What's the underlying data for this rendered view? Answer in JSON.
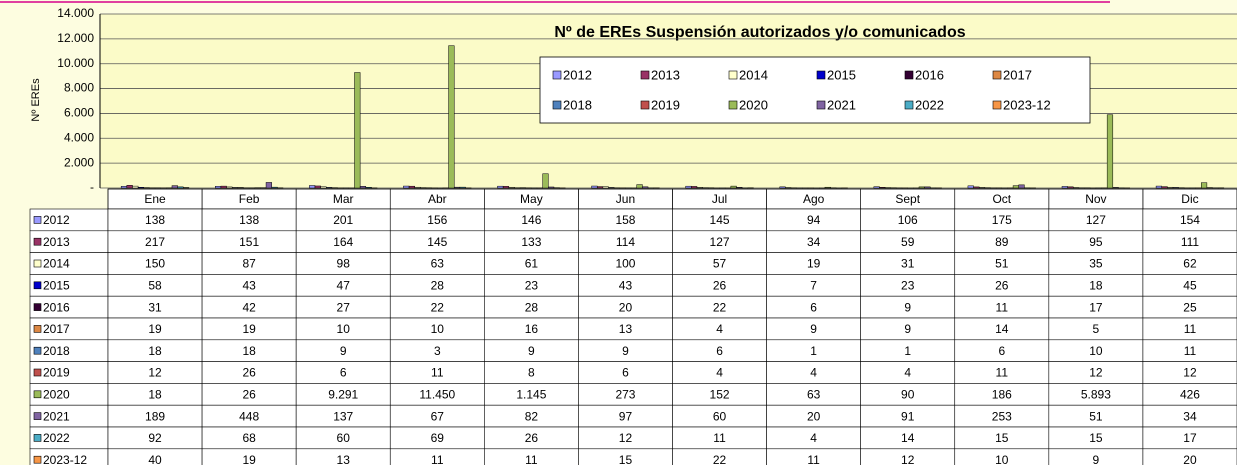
{
  "chart_data": {
    "type": "bar",
    "title": "Nº de EREs Suspensión autorizados y/o comunicados",
    "y_label": "Nº EREs",
    "categories": [
      "Ene",
      "Feb",
      "Mar",
      "Abr",
      "May",
      "Jun",
      "Jul",
      "Ago",
      "Sept",
      "Oct",
      "Nov",
      "Dic"
    ],
    "ylim": [
      0,
      14000
    ],
    "yticks": [
      {
        "value": 0,
        "label": "-"
      },
      {
        "value": 2000,
        "label": "2.000"
      },
      {
        "value": 4000,
        "label": "4.000"
      },
      {
        "value": 6000,
        "label": "6.000"
      },
      {
        "value": 8000,
        "label": "8.000"
      },
      {
        "value": 10000,
        "label": "10.000"
      },
      {
        "value": 12000,
        "label": "12.000"
      },
      {
        "value": 14000,
        "label": "14.000"
      }
    ],
    "grid": true,
    "series": [
      {
        "name": "2012",
        "color": "#9999ff",
        "values": [
          138,
          138,
          201,
          156,
          146,
          158,
          145,
          94,
          106,
          175,
          127,
          154
        ]
      },
      {
        "name": "2013",
        "color": "#993366",
        "values": [
          217,
          151,
          164,
          145,
          133,
          114,
          127,
          34,
          59,
          89,
          95,
          111
        ]
      },
      {
        "name": "2014",
        "color": "#ffffcc",
        "values": [
          150,
          87,
          98,
          63,
          61,
          100,
          57,
          19,
          31,
          51,
          35,
          62
        ]
      },
      {
        "name": "2015",
        "color": "#0000cc",
        "values": [
          58,
          43,
          47,
          28,
          23,
          43,
          26,
          7,
          23,
          26,
          18,
          45
        ]
      },
      {
        "name": "2016",
        "color": "#330033",
        "values": [
          31,
          42,
          27,
          22,
          28,
          20,
          22,
          6,
          9,
          11,
          17,
          25
        ]
      },
      {
        "name": "2017",
        "color": "#dd8844",
        "values": [
          19,
          19,
          10,
          10,
          16,
          13,
          4,
          9,
          9,
          14,
          5,
          11
        ]
      },
      {
        "name": "2018",
        "color": "#4f81bd",
        "values": [
          18,
          18,
          9,
          3,
          9,
          9,
          6,
          1,
          1,
          6,
          10,
          11
        ]
      },
      {
        "name": "2019",
        "color": "#c0504d",
        "values": [
          12,
          26,
          6,
          11,
          8,
          6,
          4,
          4,
          4,
          11,
          12,
          12
        ]
      },
      {
        "name": "2020",
        "color": "#9bbb59",
        "values": [
          18,
          26,
          9291,
          11450,
          1145,
          273,
          152,
          63,
          90,
          186,
          5893,
          426
        ],
        "value_labels": [
          "18",
          "26",
          "9.291",
          "11.450",
          "1.145",
          "273",
          "152",
          "63",
          "90",
          "186",
          "5.893",
          "426"
        ]
      },
      {
        "name": "2021",
        "color": "#8064a2",
        "values": [
          189,
          448,
          137,
          67,
          82,
          97,
          60,
          20,
          91,
          253,
          51,
          34
        ]
      },
      {
        "name": "2022",
        "color": "#4bacc6",
        "values": [
          92,
          68,
          60,
          69,
          26,
          12,
          11,
          4,
          14,
          15,
          15,
          17
        ]
      },
      {
        "name": "2023-12",
        "color": "#f79646",
        "values": [
          40,
          19,
          13,
          11,
          11,
          15,
          22,
          11,
          12,
          10,
          9,
          20
        ]
      }
    ]
  }
}
